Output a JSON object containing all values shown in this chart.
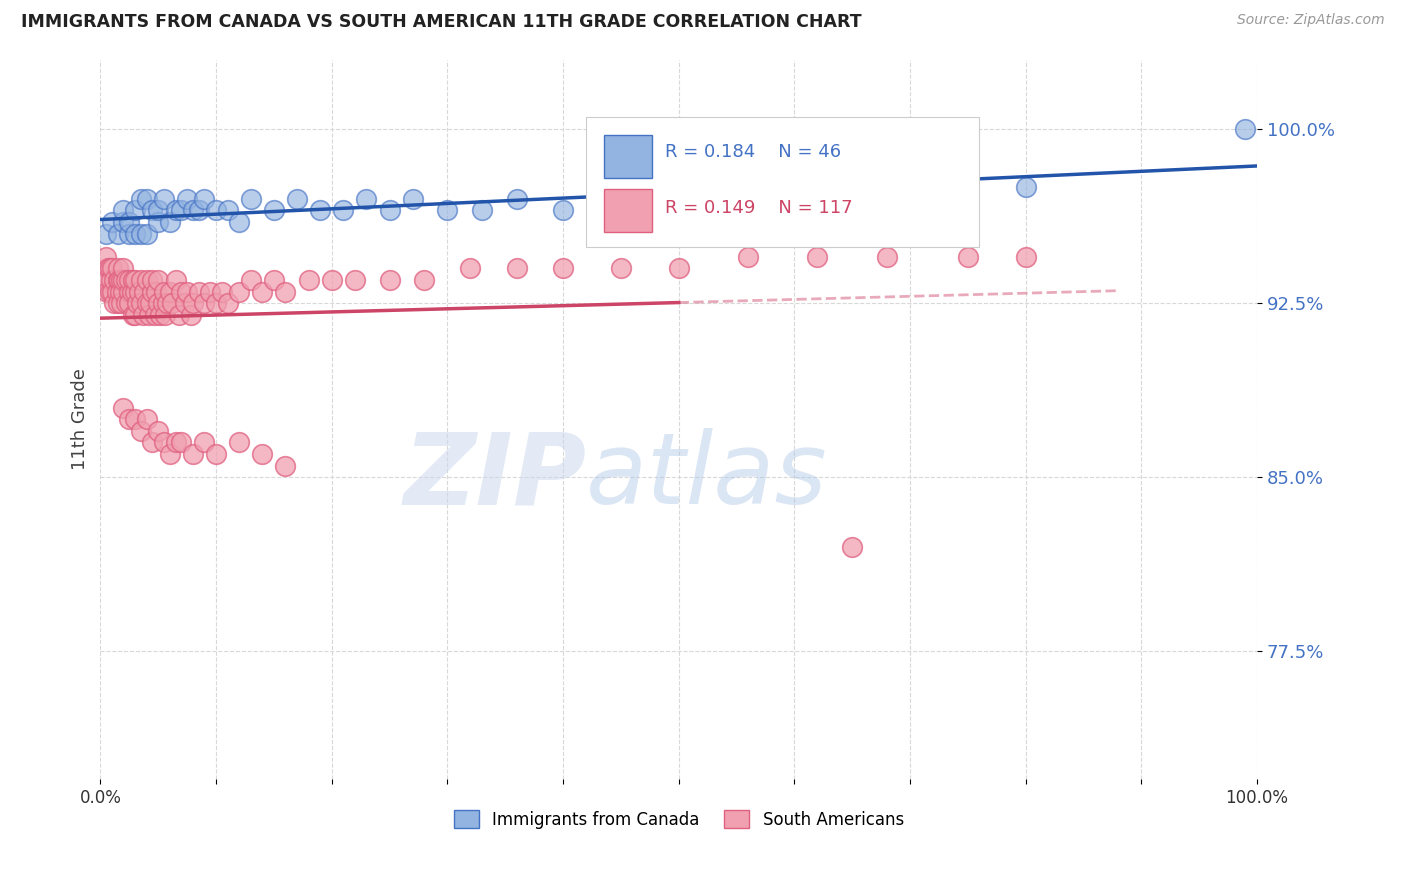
{
  "title": "IMMIGRANTS FROM CANADA VS SOUTH AMERICAN 11TH GRADE CORRELATION CHART",
  "source": "Source: ZipAtlas.com",
  "ylabel": "11th Grade",
  "xlim": [
    0.0,
    1.0
  ],
  "ylim": [
    0.72,
    1.03
  ],
  "x_ticks": [
    0.0,
    0.1,
    0.2,
    0.3,
    0.4,
    0.5,
    0.6,
    0.7,
    0.8,
    0.9,
    1.0
  ],
  "x_tick_labels": [
    "0.0%",
    "",
    "",
    "",
    "",
    "",
    "",
    "",
    "",
    "",
    "100.0%"
  ],
  "y_ticks": [
    0.775,
    0.85,
    0.925,
    1.0
  ],
  "y_tick_labels": [
    "77.5%",
    "85.0%",
    "92.5%",
    "100.0%"
  ],
  "grid_color": "#d8d8d8",
  "background_color": "#ffffff",
  "watermark_zip": "ZIP",
  "watermark_atlas": "atlas",
  "blue_color": "#4472C4",
  "blue_marker_face": "#93b3e0",
  "blue_marker_edge": "#4472C4",
  "pink_color": "#E06080",
  "pink_marker_face": "#f0a0b0",
  "pink_marker_edge": "#E06080",
  "blue_line_color": "#2255AA",
  "pink_line_color": "#CC4466",
  "legend_label1": "Immigrants from Canada",
  "legend_label2": "South Americans",
  "canada_x": [
    0.005,
    0.01,
    0.015,
    0.02,
    0.02,
    0.025,
    0.025,
    0.03,
    0.03,
    0.035,
    0.035,
    0.04,
    0.04,
    0.045,
    0.05,
    0.05,
    0.055,
    0.06,
    0.065,
    0.07,
    0.075,
    0.08,
    0.085,
    0.09,
    0.1,
    0.11,
    0.12,
    0.13,
    0.15,
    0.17,
    0.19,
    0.21,
    0.23,
    0.25,
    0.27,
    0.3,
    0.33,
    0.36,
    0.4,
    0.44,
    0.48,
    0.52,
    0.6,
    0.7,
    0.8,
    0.99
  ],
  "canada_y": [
    0.955,
    0.96,
    0.955,
    0.96,
    0.965,
    0.955,
    0.96,
    0.955,
    0.965,
    0.955,
    0.97,
    0.955,
    0.97,
    0.965,
    0.96,
    0.965,
    0.97,
    0.96,
    0.965,
    0.965,
    0.97,
    0.965,
    0.965,
    0.97,
    0.965,
    0.965,
    0.96,
    0.97,
    0.965,
    0.97,
    0.965,
    0.965,
    0.97,
    0.965,
    0.97,
    0.965,
    0.965,
    0.97,
    0.965,
    0.965,
    0.97,
    0.965,
    0.97,
    0.975,
    0.975,
    1.0
  ],
  "south_x": [
    0.005,
    0.005,
    0.006,
    0.007,
    0.008,
    0.008,
    0.009,
    0.01,
    0.01,
    0.012,
    0.012,
    0.014,
    0.015,
    0.015,
    0.015,
    0.016,
    0.017,
    0.018,
    0.018,
    0.02,
    0.02,
    0.02,
    0.022,
    0.022,
    0.025,
    0.025,
    0.025,
    0.027,
    0.028,
    0.028,
    0.03,
    0.03,
    0.03,
    0.032,
    0.033,
    0.035,
    0.035,
    0.037,
    0.038,
    0.04,
    0.04,
    0.042,
    0.043,
    0.045,
    0.045,
    0.047,
    0.048,
    0.05,
    0.05,
    0.052,
    0.054,
    0.055,
    0.056,
    0.058,
    0.06,
    0.062,
    0.065,
    0.068,
    0.07,
    0.073,
    0.075,
    0.078,
    0.08,
    0.085,
    0.09,
    0.095,
    0.1,
    0.105,
    0.11,
    0.12,
    0.13,
    0.14,
    0.15,
    0.16,
    0.18,
    0.2,
    0.22,
    0.25,
    0.28,
    0.32,
    0.36,
    0.4,
    0.45,
    0.5,
    0.56,
    0.62,
    0.68,
    0.75,
    0.8,
    0.65,
    0.02,
    0.025,
    0.03,
    0.035,
    0.04,
    0.045,
    0.05,
    0.055,
    0.06,
    0.065,
    0.07,
    0.08,
    0.09,
    0.1,
    0.12,
    0.14,
    0.16
  ],
  "south_y": [
    0.945,
    0.935,
    0.93,
    0.94,
    0.93,
    0.94,
    0.935,
    0.93,
    0.94,
    0.925,
    0.935,
    0.93,
    0.935,
    0.925,
    0.94,
    0.935,
    0.93,
    0.935,
    0.925,
    0.93,
    0.935,
    0.94,
    0.925,
    0.935,
    0.93,
    0.935,
    0.925,
    0.93,
    0.935,
    0.92,
    0.93,
    0.935,
    0.92,
    0.925,
    0.93,
    0.925,
    0.935,
    0.92,
    0.93,
    0.925,
    0.935,
    0.92,
    0.925,
    0.93,
    0.935,
    0.92,
    0.93,
    0.925,
    0.935,
    0.92,
    0.925,
    0.93,
    0.92,
    0.925,
    0.93,
    0.925,
    0.935,
    0.92,
    0.93,
    0.925,
    0.93,
    0.92,
    0.925,
    0.93,
    0.925,
    0.93,
    0.925,
    0.93,
    0.925,
    0.93,
    0.935,
    0.93,
    0.935,
    0.93,
    0.935,
    0.935,
    0.935,
    0.935,
    0.935,
    0.94,
    0.94,
    0.94,
    0.94,
    0.94,
    0.945,
    0.945,
    0.945,
    0.945,
    0.945,
    0.82,
    0.88,
    0.875,
    0.875,
    0.87,
    0.875,
    0.865,
    0.87,
    0.865,
    0.86,
    0.865,
    0.865,
    0.86,
    0.865,
    0.86,
    0.865,
    0.86,
    0.855
  ]
}
